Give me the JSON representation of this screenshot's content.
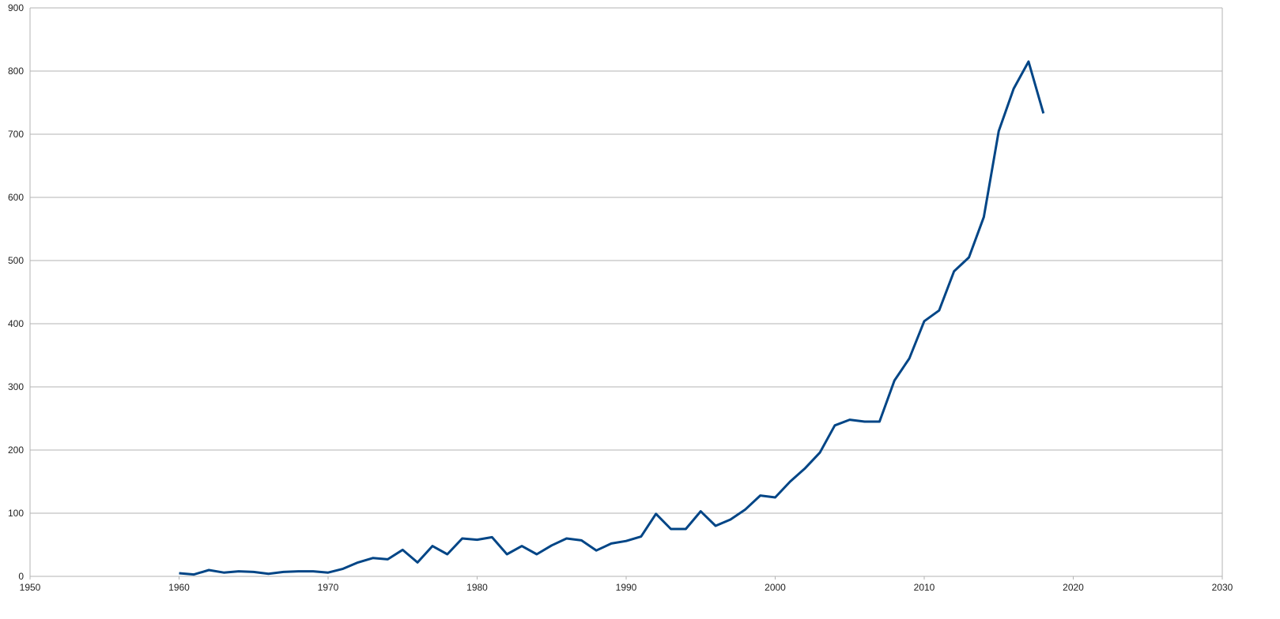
{
  "chart_data": {
    "type": "line",
    "x": [
      1960,
      1961,
      1962,
      1963,
      1964,
      1965,
      1966,
      1967,
      1968,
      1969,
      1970,
      1971,
      1972,
      1973,
      1974,
      1975,
      1976,
      1977,
      1978,
      1979,
      1980,
      1981,
      1982,
      1983,
      1984,
      1985,
      1986,
      1987,
      1988,
      1989,
      1990,
      1991,
      1992,
      1993,
      1994,
      1995,
      1996,
      1997,
      1998,
      1999,
      2000,
      2001,
      2002,
      2003,
      2004,
      2005,
      2006,
      2007,
      2008,
      2009,
      2010,
      2011,
      2012,
      2013,
      2014,
      2015,
      2016,
      2017,
      2018
    ],
    "values": [
      5,
      3,
      10,
      6,
      8,
      7,
      4,
      7,
      8,
      8,
      6,
      12,
      22,
      29,
      27,
      42,
      22,
      48,
      35,
      60,
      58,
      62,
      35,
      48,
      35,
      49,
      60,
      57,
      41,
      52,
      56,
      63,
      99,
      75,
      75,
      103,
      80,
      90,
      106,
      128,
      125,
      150,
      171,
      196,
      239,
      248,
      245,
      245,
      310,
      345,
      404,
      421,
      483,
      505,
      569,
      705,
      772,
      815,
      733
    ],
    "color": "#004586",
    "xlim": [
      1950,
      2030
    ],
    "xticks": [
      1950,
      1960,
      1970,
      1980,
      1990,
      2000,
      2010,
      2020,
      2030
    ],
    "ylim": [
      0,
      900
    ],
    "yticks": [
      0,
      100,
      200,
      300,
      400,
      500,
      600,
      700,
      800,
      900
    ],
    "grid": true
  }
}
